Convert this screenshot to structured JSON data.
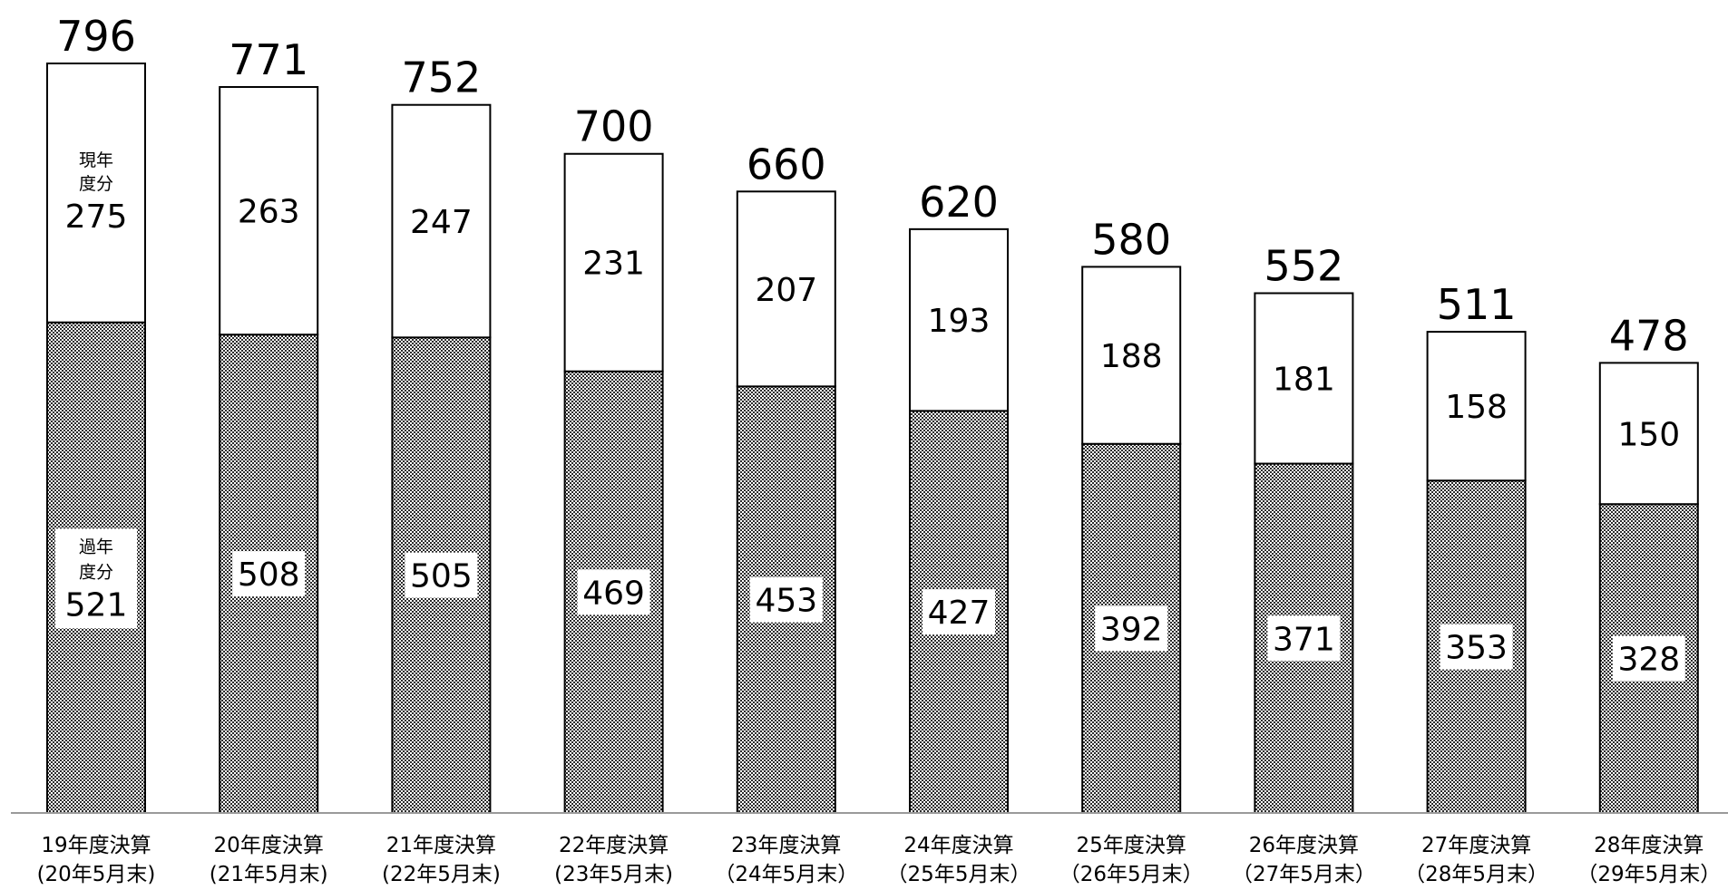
{
  "chart_data": {
    "type": "bar",
    "stacked": true,
    "title": "",
    "xlabel": "",
    "ylabel": "",
    "ylim": [
      0,
      830
    ],
    "grid": false,
    "categories": [
      [
        "19年度決算",
        "(20年5月末)"
      ],
      [
        "20年度決算",
        "(21年5月末)"
      ],
      [
        "21年度決算",
        "(22年5月末)"
      ],
      [
        "22年度決算",
        "(23年5月末)"
      ],
      [
        "23年度決算",
        "（24年5月末）"
      ],
      [
        "24年度決算",
        "（25年5月末）"
      ],
      [
        "25年度決算",
        "（26年5月末）"
      ],
      [
        "26年度決算",
        "（27年5月末）"
      ],
      [
        "27年度決算",
        "（28年5月末）"
      ],
      [
        "28年度決算",
        "（29年5月末）"
      ]
    ],
    "series": [
      {
        "name": "過年度分",
        "values": [
          521,
          508,
          505,
          469,
          453,
          427,
          392,
          371,
          353,
          328
        ],
        "fill": "pattern-dots"
      },
      {
        "name": "現年度分",
        "values": [
          275,
          263,
          247,
          231,
          207,
          193,
          188,
          181,
          158,
          150
        ],
        "fill": "#ffffff"
      }
    ],
    "totals": [
      796,
      771,
      752,
      700,
      660,
      620,
      580,
      552,
      511,
      478
    ],
    "segment_labels": {
      "past_year_first": [
        "過年",
        "度分"
      ],
      "current_year_first": [
        "現年",
        "度分"
      ]
    },
    "colors": {
      "stroke": "#000000",
      "background": "#ffffff",
      "pattern_dark": "#444444",
      "pattern_light": "#ffffff"
    }
  }
}
